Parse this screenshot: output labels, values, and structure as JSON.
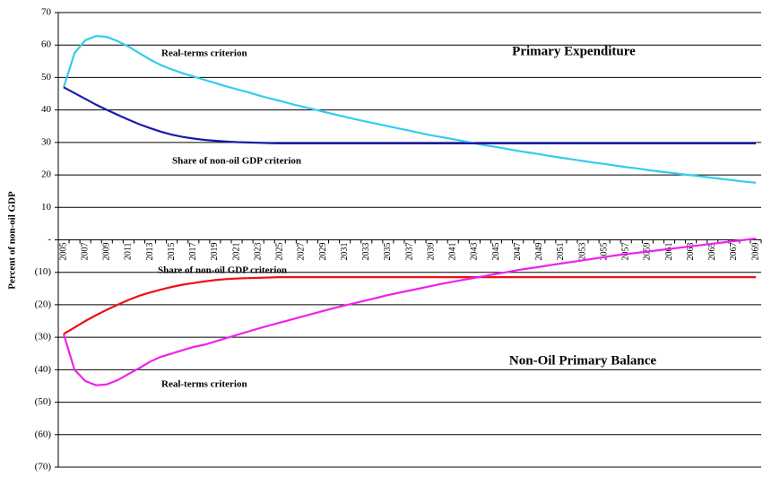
{
  "chart_data": {
    "type": "line",
    "ylabel": "Percent of non-oil GDP",
    "annotations": [
      "Primary Expenditure",
      "Non-Oil Primary Balance"
    ],
    "categories": [
      "2005",
      null,
      "2007",
      null,
      "2009",
      null,
      "2011",
      null,
      "2013",
      null,
      "2015",
      null,
      "2017",
      null,
      "2019",
      null,
      "2021",
      null,
      "2023",
      null,
      "2025",
      null,
      "2027",
      null,
      "2029",
      null,
      "2031",
      null,
      "2033",
      null,
      "2035",
      null,
      "2037",
      null,
      "2039",
      null,
      "2041",
      null,
      "2043",
      null,
      "2045",
      null,
      "2047",
      null,
      "2049",
      null,
      "2051",
      null,
      "2053",
      null,
      "2055",
      null,
      "2057",
      null,
      "2059",
      null,
      "2061",
      null,
      "2063",
      null,
      "2065",
      null,
      "2067",
      null,
      "2069"
    ],
    "series": [
      {
        "name": "Real-terms criterion",
        "color": "#33ccee",
        "values": [
          47,
          57.5,
          61.5,
          62.8,
          62.5,
          61.2,
          59.5,
          57.5,
          55.5,
          53.8,
          52.5,
          51.3,
          50.3,
          49.3,
          48.3,
          47.3,
          46.4,
          45.5,
          44.5,
          43.6,
          42.8,
          41.9,
          41.1,
          40.3,
          39.5,
          38.7,
          37.9,
          37.1,
          36.4,
          35.7,
          35.0,
          34.3,
          33.6,
          32.9,
          32.2,
          31.6,
          31.0,
          30.4,
          29.7,
          29.1,
          28.6,
          28.0,
          27.4,
          26.9,
          26.4,
          25.8,
          25.3,
          24.8,
          24.3,
          23.8,
          23.4,
          22.9,
          22.4,
          22.0,
          21.5,
          21.1,
          20.7,
          20.3,
          19.9,
          19.5,
          19.1,
          18.7,
          18.3,
          17.9,
          17.6
        ]
      },
      {
        "name": "Share of non-oil GDP criterion",
        "color": "#1a1aaa",
        "values": [
          47,
          45.2,
          43.4,
          41.6,
          40,
          38.5,
          37,
          35.6,
          34.4,
          33.3,
          32.4,
          31.7,
          31.2,
          30.8,
          30.5,
          30.3,
          30.1,
          30.0,
          29.9,
          29.8,
          29.7,
          29.7,
          29.7,
          29.7,
          29.7,
          29.7,
          29.7,
          29.7,
          29.7,
          29.7,
          29.7,
          29.7,
          29.7,
          29.7,
          29.7,
          29.7,
          29.7,
          29.7,
          29.7,
          29.7,
          29.7,
          29.7,
          29.7,
          29.7,
          29.7,
          29.7,
          29.7,
          29.7,
          29.7,
          29.7,
          29.7,
          29.7,
          29.7,
          29.7,
          29.7,
          29.7,
          29.7,
          29.7,
          29.7,
          29.7,
          29.7,
          29.7,
          29.7,
          29.7,
          29.7
        ]
      },
      {
        "name": "Share of non-oil GDP criterion",
        "color": "#ee1111",
        "values": [
          -29,
          -27,
          -25,
          -23.2,
          -21.5,
          -20,
          -18.5,
          -17.2,
          -16.2,
          -15.3,
          -14.5,
          -13.8,
          -13.3,
          -12.8,
          -12.4,
          -12.1,
          -11.9,
          -11.8,
          -11.7,
          -11.6,
          -11.5,
          -11.5,
          -11.5,
          -11.5,
          -11.5,
          -11.5,
          -11.5,
          -11.5,
          -11.5,
          -11.5,
          -11.5,
          -11.5,
          -11.5,
          -11.5,
          -11.5,
          -11.5,
          -11.5,
          -11.5,
          -11.5,
          -11.5,
          -11.5,
          -11.5,
          -11.5,
          -11.5,
          -11.5,
          -11.5,
          -11.5,
          -11.5,
          -11.5,
          -11.5,
          -11.5,
          -11.5,
          -11.5,
          -11.5,
          -11.5,
          -11.5,
          -11.5,
          -11.5,
          -11.5,
          -11.5,
          -11.5,
          -11.5,
          -11.5,
          -11.5,
          -11.5
        ]
      },
      {
        "name": "Real-terms criterion",
        "color": "#ee22ee",
        "values": [
          -29,
          -40,
          -43.5,
          -44.8,
          -44.5,
          -43.2,
          -41.3,
          -39.5,
          -37.5,
          -36,
          -35,
          -34,
          -33,
          -32.3,
          -31.3,
          -30.3,
          -29.3,
          -28.3,
          -27.3,
          -26.4,
          -25.5,
          -24.6,
          -23.7,
          -22.8,
          -21.9,
          -21,
          -20.2,
          -19.4,
          -18.6,
          -17.8,
          -17,
          -16.3,
          -15.6,
          -14.9,
          -14.2,
          -13.5,
          -12.9,
          -12.3,
          -11.7,
          -11.1,
          -10.5,
          -9.9,
          -9.3,
          -8.8,
          -8.3,
          -7.8,
          -7.3,
          -6.8,
          -6.3,
          -5.8,
          -5.3,
          -4.8,
          -4.4,
          -4,
          -3.6,
          -3.2,
          -2.8,
          -2.4,
          -2,
          -1.6,
          -1.2,
          -0.8,
          -0.4,
          0,
          0.4
        ]
      }
    ],
    "ylim": [
      -70,
      70
    ],
    "yticks": [
      {
        "value": -70,
        "label": "(70)"
      },
      {
        "value": -60,
        "label": "(60)"
      },
      {
        "value": -50,
        "label": "(50)"
      },
      {
        "value": -40,
        "label": "(40)"
      },
      {
        "value": -30,
        "label": "(30)"
      },
      {
        "value": -20,
        "label": "(20)"
      },
      {
        "value": -10,
        "label": "(10)"
      },
      {
        "value": 0,
        "label": "-"
      },
      10,
      20,
      30,
      40,
      50,
      60,
      70
    ],
    "grid": true
  }
}
